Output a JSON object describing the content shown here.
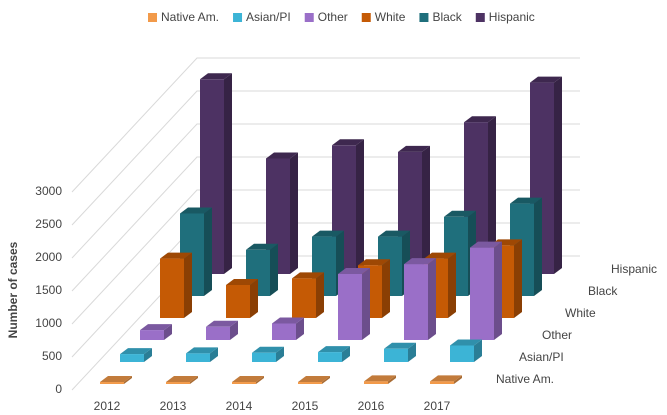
{
  "chart_data": {
    "type": "bar3d",
    "categories": [
      "2012",
      "2013",
      "2014",
      "2015",
      "2016",
      "2017"
    ],
    "ylabel": "Number of cases",
    "ylim": [
      0,
      3000
    ],
    "yticks": [
      0,
      500,
      1000,
      1500,
      2000,
      2500,
      3000
    ],
    "grid": true,
    "series": [
      {
        "name": "Native Am.",
        "color": "#f29a4a",
        "values": [
          30,
          30,
          30,
          30,
          40,
          40
        ]
      },
      {
        "name": "Asian/PI",
        "color": "#3cb4d6",
        "values": [
          120,
          130,
          140,
          150,
          200,
          250
        ]
      },
      {
        "name": "Other",
        "color": "#9a6fc8",
        "values": [
          150,
          200,
          250,
          1000,
          1150,
          1400
        ]
      },
      {
        "name": "White",
        "color": "#c55a05",
        "values": [
          900,
          500,
          600,
          800,
          900,
          1100
        ]
      },
      {
        "name": "Black",
        "color": "#1f6f7c",
        "values": [
          1250,
          700,
          900,
          900,
          1200,
          1400
        ]
      },
      {
        "name": "Hispanic",
        "color": "#4d3263",
        "values": [
          2950,
          1750,
          1950,
          1850,
          2300,
          2900
        ]
      }
    ]
  }
}
